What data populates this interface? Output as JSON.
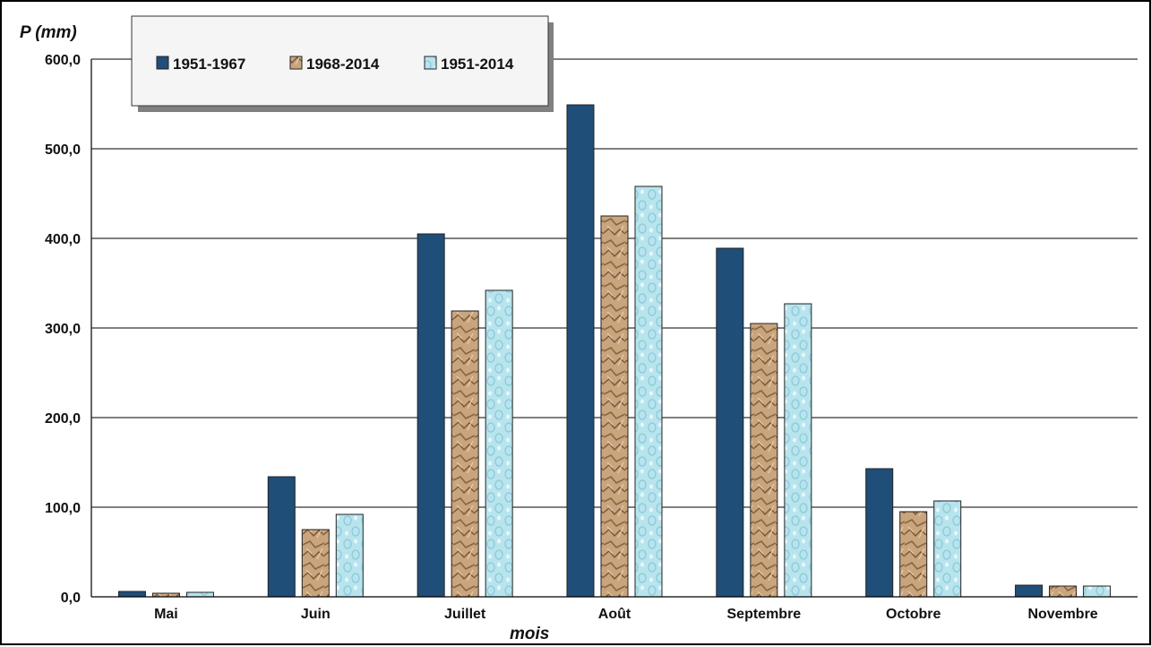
{
  "chart_data": {
    "type": "bar",
    "title": "",
    "ylabel": "P (mm)",
    "xlabel": "mois",
    "ylim": [
      0,
      600
    ],
    "yticks": [
      "0,0",
      "100,0",
      "200,0",
      "300,0",
      "400,0",
      "500,0",
      "600,0"
    ],
    "categories": [
      "Mai",
      "Juin",
      "Juillet",
      "Août",
      "Septembre",
      "Octobre",
      "Novembre"
    ],
    "grid": true,
    "legend_position": "top-left",
    "series": [
      {
        "name": "1951-1967",
        "color": "#1f4e79",
        "values": [
          6,
          134,
          405,
          549,
          389,
          143,
          13
        ]
      },
      {
        "name": "1968-2014",
        "color": "#c9a57e",
        "values": [
          4,
          75,
          319,
          425,
          305,
          95,
          12
        ]
      },
      {
        "name": "1951-2014",
        "color": "#b8e4ee",
        "values": [
          5,
          92,
          342,
          458,
          327,
          107,
          12
        ]
      }
    ]
  }
}
